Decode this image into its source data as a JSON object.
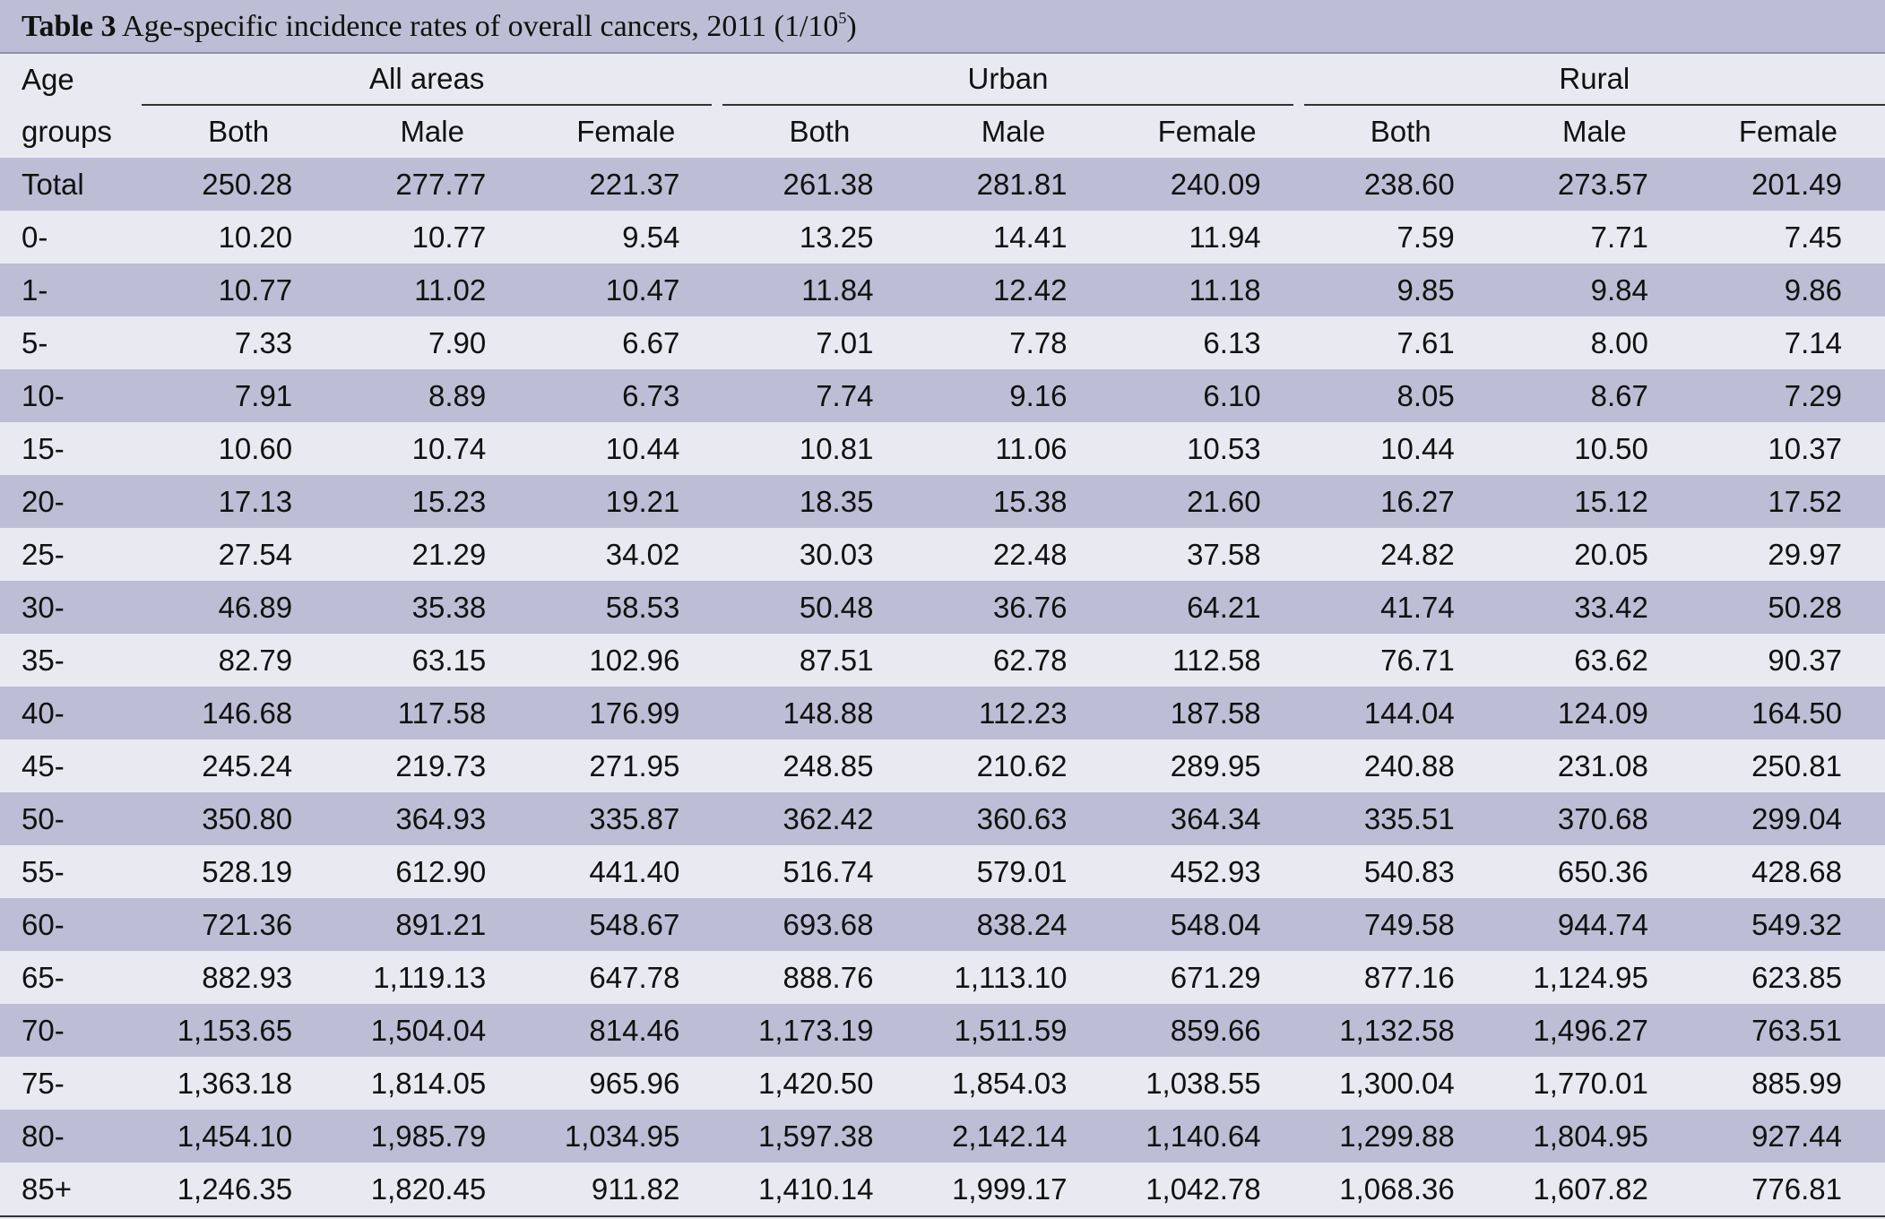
{
  "caption": {
    "label": "Table 3",
    "text": "Age-specific incidence rates of overall cancers, 2011 (1/10",
    "sup": "5",
    "close": ")"
  },
  "header": {
    "age_line1": "Age",
    "age_line2": "groups",
    "groups": [
      "All areas",
      "Urban",
      "Rural"
    ],
    "sub": [
      "Both",
      "Male",
      "Female"
    ]
  },
  "rows": [
    {
      "age": "Total",
      "v": [
        "250.28",
        "277.77",
        "221.37",
        "261.38",
        "281.81",
        "240.09",
        "238.60",
        "273.57",
        "201.49"
      ]
    },
    {
      "age": "0-",
      "v": [
        "10.20",
        "10.77",
        "9.54",
        "13.25",
        "14.41",
        "11.94",
        "7.59",
        "7.71",
        "7.45"
      ]
    },
    {
      "age": "1-",
      "v": [
        "10.77",
        "11.02",
        "10.47",
        "11.84",
        "12.42",
        "11.18",
        "9.85",
        "9.84",
        "9.86"
      ]
    },
    {
      "age": "5-",
      "v": [
        "7.33",
        "7.90",
        "6.67",
        "7.01",
        "7.78",
        "6.13",
        "7.61",
        "8.00",
        "7.14"
      ]
    },
    {
      "age": "10-",
      "v": [
        "7.91",
        "8.89",
        "6.73",
        "7.74",
        "9.16",
        "6.10",
        "8.05",
        "8.67",
        "7.29"
      ]
    },
    {
      "age": "15-",
      "v": [
        "10.60",
        "10.74",
        "10.44",
        "10.81",
        "11.06",
        "10.53",
        "10.44",
        "10.50",
        "10.37"
      ]
    },
    {
      "age": "20-",
      "v": [
        "17.13",
        "15.23",
        "19.21",
        "18.35",
        "15.38",
        "21.60",
        "16.27",
        "15.12",
        "17.52"
      ]
    },
    {
      "age": "25-",
      "v": [
        "27.54",
        "21.29",
        "34.02",
        "30.03",
        "22.48",
        "37.58",
        "24.82",
        "20.05",
        "29.97"
      ]
    },
    {
      "age": "30-",
      "v": [
        "46.89",
        "35.38",
        "58.53",
        "50.48",
        "36.76",
        "64.21",
        "41.74",
        "33.42",
        "50.28"
      ]
    },
    {
      "age": "35-",
      "v": [
        "82.79",
        "63.15",
        "102.96",
        "87.51",
        "62.78",
        "112.58",
        "76.71",
        "63.62",
        "90.37"
      ]
    },
    {
      "age": "40-",
      "v": [
        "146.68",
        "117.58",
        "176.99",
        "148.88",
        "112.23",
        "187.58",
        "144.04",
        "124.09",
        "164.50"
      ]
    },
    {
      "age": "45-",
      "v": [
        "245.24",
        "219.73",
        "271.95",
        "248.85",
        "210.62",
        "289.95",
        "240.88",
        "231.08",
        "250.81"
      ]
    },
    {
      "age": "50-",
      "v": [
        "350.80",
        "364.93",
        "335.87",
        "362.42",
        "360.63",
        "364.34",
        "335.51",
        "370.68",
        "299.04"
      ]
    },
    {
      "age": "55-",
      "v": [
        "528.19",
        "612.90",
        "441.40",
        "516.74",
        "579.01",
        "452.93",
        "540.83",
        "650.36",
        "428.68"
      ]
    },
    {
      "age": "60-",
      "v": [
        "721.36",
        "891.21",
        "548.67",
        "693.68",
        "838.24",
        "548.04",
        "749.58",
        "944.74",
        "549.32"
      ]
    },
    {
      "age": "65-",
      "v": [
        "882.93",
        "1,119.13",
        "647.78",
        "888.76",
        "1,113.10",
        "671.29",
        "877.16",
        "1,124.95",
        "623.85"
      ]
    },
    {
      "age": "70-",
      "v": [
        "1,153.65",
        "1,504.04",
        "814.46",
        "1,173.19",
        "1,511.59",
        "859.66",
        "1,132.58",
        "1,496.27",
        "763.51"
      ]
    },
    {
      "age": "75-",
      "v": [
        "1,363.18",
        "1,814.05",
        "965.96",
        "1,420.50",
        "1,854.03",
        "1,038.55",
        "1,300.04",
        "1,770.01",
        "885.99"
      ]
    },
    {
      "age": "80-",
      "v": [
        "1,454.10",
        "1,985.79",
        "1,034.95",
        "1,597.38",
        "2,142.14",
        "1,140.64",
        "1,299.88",
        "1,804.95",
        "927.44"
      ]
    },
    {
      "age": "85+",
      "v": [
        "1,246.35",
        "1,820.45",
        "911.82",
        "1,410.14",
        "1,999.17",
        "1,042.78",
        "1,068.36",
        "1,607.82",
        "776.81"
      ]
    }
  ]
}
